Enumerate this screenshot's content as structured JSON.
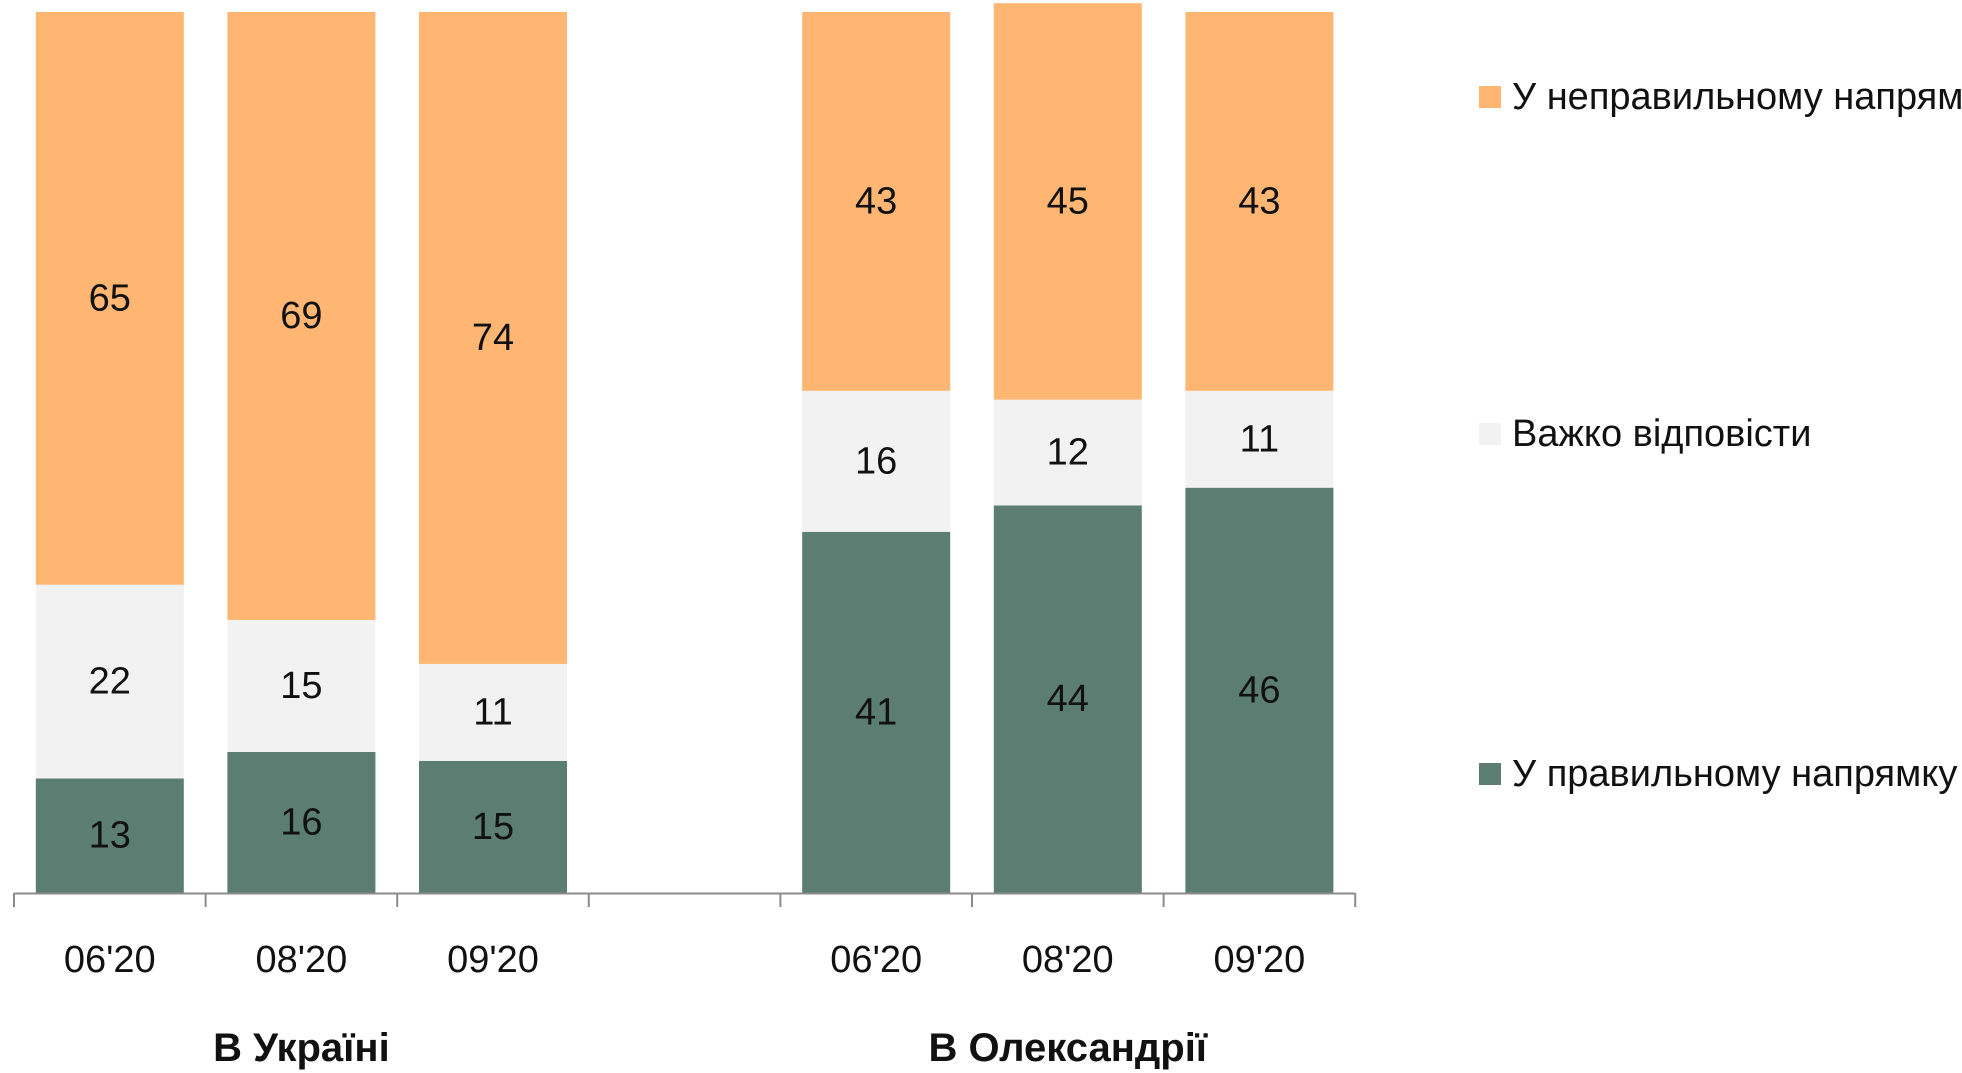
{
  "chart_data": {
    "type": "bar",
    "stacked": true,
    "categories": [
      "06'20",
      "08'20",
      "09'20",
      "",
      "06'20",
      "08'20",
      "09'20"
    ],
    "groups": [
      {
        "label": "В Україні",
        "category_indices": [
          0,
          1,
          2
        ]
      },
      {
        "label": "В Олександрії",
        "category_indices": [
          4,
          5,
          6
        ]
      }
    ],
    "series": [
      {
        "name": "У правильному напрямку",
        "color": "#5c7d72",
        "values": [
          13,
          16,
          15,
          null,
          41,
          44,
          46
        ]
      },
      {
        "name": "Важко відповісти",
        "color": "#f2f2f2",
        "values": [
          22,
          15,
          11,
          null,
          16,
          12,
          11
        ]
      },
      {
        "name": "У неправильному напрямку",
        "color": "#ffb673",
        "values": [
          65,
          69,
          74,
          null,
          43,
          45,
          43
        ]
      }
    ],
    "ylim": [
      0,
      100
    ],
    "grid": false,
    "legend_position": "right",
    "legend_order": [
      "У неправильному напрямку",
      "Важко відповісти",
      "У правильному напрямку"
    ]
  }
}
